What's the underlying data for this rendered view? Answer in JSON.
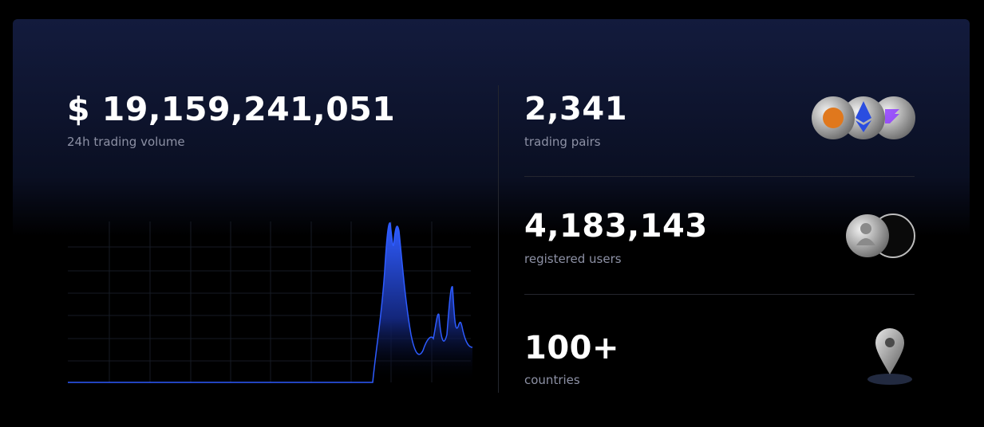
{
  "volume": {
    "value": "$ 19,159,241,051",
    "label": "24h trading volume"
  },
  "stats": [
    {
      "value": "2,341",
      "label": "trading pairs"
    },
    {
      "value": "4,183,143",
      "label": "registered users"
    },
    {
      "value": "100+",
      "label": "countries"
    }
  ]
}
